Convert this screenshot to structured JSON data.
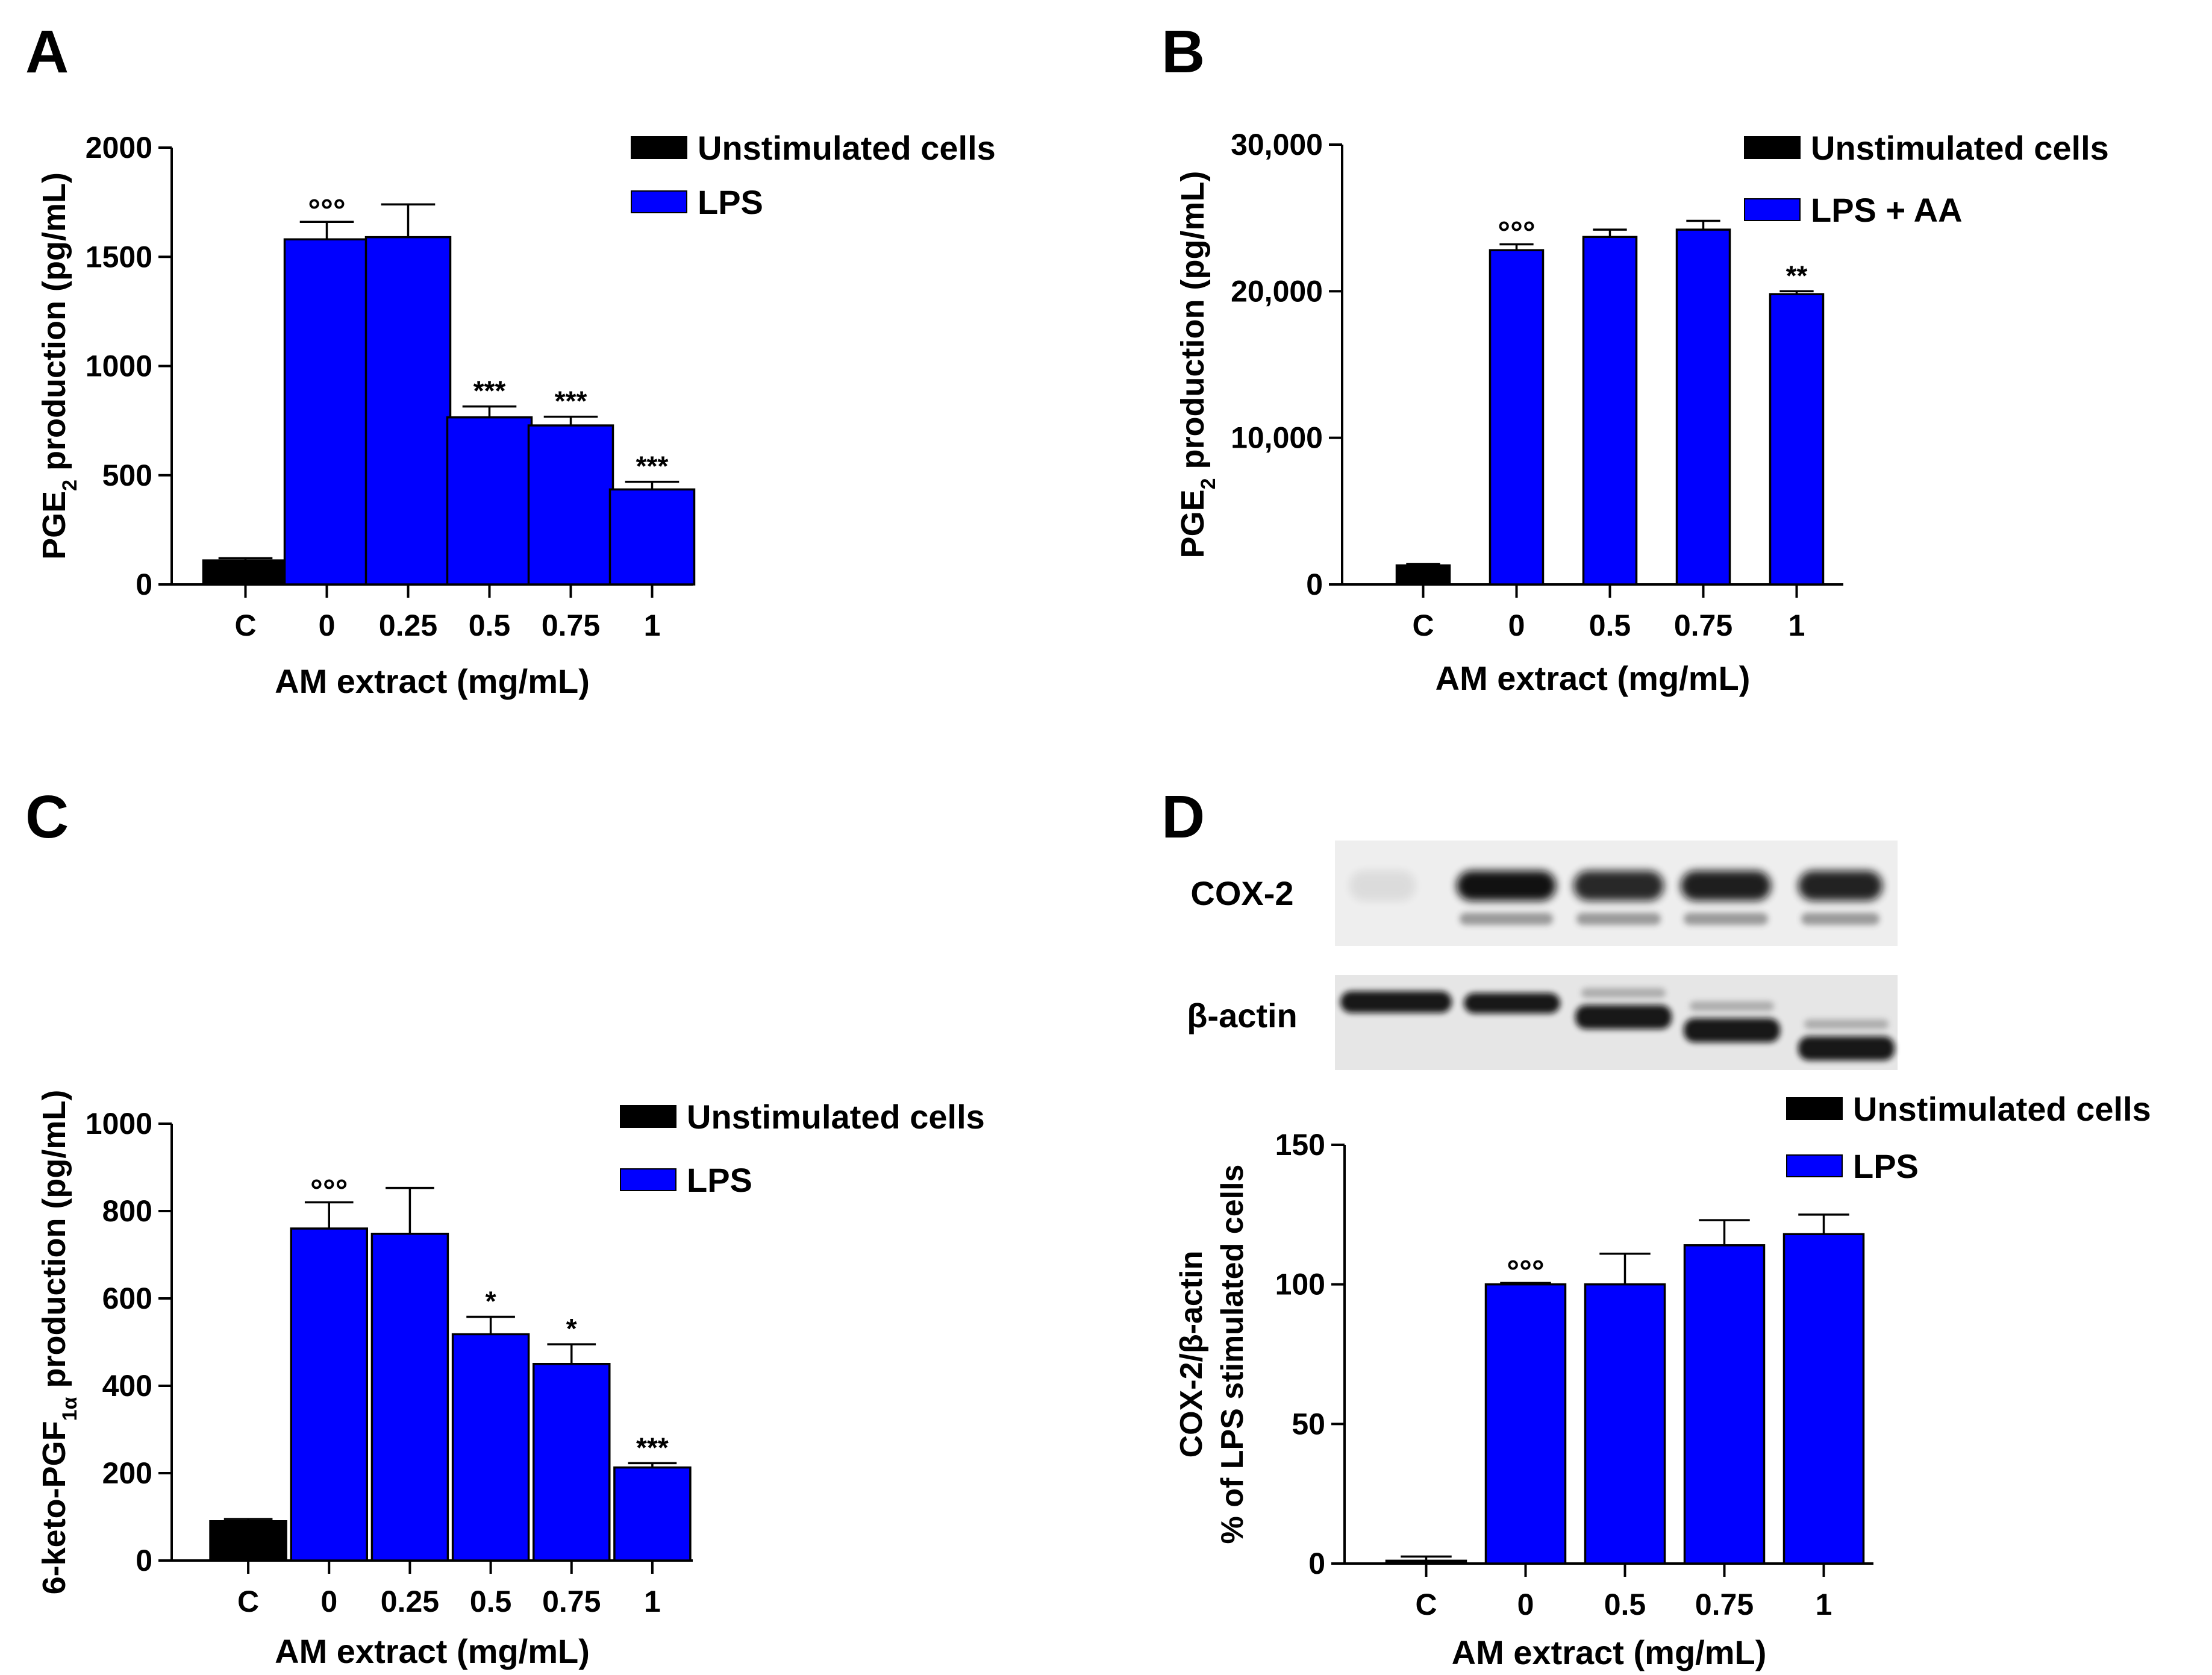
{
  "colors": {
    "unstimulated": "#000000",
    "lps": "#0000ff",
    "axis": "#000000",
    "sig": "#000000"
  },
  "chart_data": [
    {
      "type": "bar",
      "panel_label": "A",
      "ylabel": "PGE2 production (pg/mL)",
      "ylabel_parts": {
        "pre": "PGE",
        "sub": "2",
        "post": " production (pg/mL)"
      },
      "xlabel": "AM extract (mg/mL)",
      "categories": [
        "C",
        "0",
        "0.25",
        "0.5",
        "0.75",
        "1"
      ],
      "values": [
        110,
        1580,
        1590,
        765,
        728,
        435
      ],
      "errors": [
        10,
        80,
        150,
        50,
        40,
        35
      ],
      "series_index": [
        0,
        1,
        1,
        1,
        1,
        1
      ],
      "significance": [
        "",
        "°°°",
        "",
        "***",
        "***",
        "***"
      ],
      "ylim": [
        0,
        2000
      ],
      "yticks": [
        0,
        500,
        1000,
        1500,
        2000
      ],
      "yticklabels": [
        "0",
        "500",
        "1000",
        "1500",
        "2000"
      ],
      "legend": [
        "Unstimulated cells",
        "LPS"
      ]
    },
    {
      "type": "bar",
      "panel_label": "B",
      "ylabel": "PGE2 production (pg/mL)",
      "ylabel_parts": {
        "pre": "PGE",
        "sub": "2",
        "post": " production (pg/mL)"
      },
      "xlabel": "AM extract (mg/mL)",
      "categories": [
        "C",
        "0",
        "0.5",
        "0.75",
        "1"
      ],
      "values": [
        1300,
        22800,
        23700,
        24200,
        19800
      ],
      "errors": [
        100,
        400,
        500,
        600,
        200
      ],
      "series_index": [
        0,
        1,
        1,
        1,
        1
      ],
      "significance": [
        "",
        "°°°",
        "",
        "",
        "**"
      ],
      "ylim": [
        0,
        30000
      ],
      "yticks": [
        0,
        10000,
        20000,
        30000
      ],
      "yticklabels": [
        "0",
        "10,000",
        "20,000",
        "30,000"
      ],
      "legend": [
        "Unstimulated cells",
        "LPS + AA"
      ]
    },
    {
      "type": "bar",
      "panel_label": "C",
      "ylabel": "6-keto-PGF1α production (pg/mL)",
      "ylabel_parts": {
        "pre": "6-keto-PGF",
        "sub": "1α",
        "post": " production (pg/mL)"
      },
      "xlabel": "AM extract (mg/mL)",
      "categories": [
        "C",
        "0",
        "0.25",
        "0.5",
        "0.75",
        "1"
      ],
      "values": [
        90,
        760,
        748,
        518,
        450,
        213
      ],
      "errors": [
        5,
        60,
        105,
        40,
        45,
        10
      ],
      "series_index": [
        0,
        1,
        1,
        1,
        1,
        1
      ],
      "significance": [
        "",
        "°°°",
        "",
        "*",
        "*",
        "***"
      ],
      "ylim": [
        0,
        1000
      ],
      "yticks": [
        0,
        200,
        400,
        600,
        800,
        1000
      ],
      "yticklabels": [
        "0",
        "200",
        "400",
        "600",
        "800",
        "1000"
      ],
      "legend": [
        "Unstimulated cells",
        "LPS"
      ]
    },
    {
      "type": "bar",
      "panel_label": "D",
      "ylabel": "COX-2/β-actin % of LPS stimulated cells",
      "ylabel_lines": [
        "COX-2/β-actin",
        "% of LPS stimulated cells"
      ],
      "xlabel": "AM extract (mg/mL)",
      "categories": [
        "C",
        "0",
        "0.5",
        "0.75",
        "1"
      ],
      "values": [
        1,
        100,
        100,
        114,
        118
      ],
      "errors": [
        1.5,
        0.5,
        11,
        9,
        7
      ],
      "series_index": [
        0,
        1,
        1,
        1,
        1
      ],
      "significance": [
        "",
        "°°°",
        "",
        "",
        ""
      ],
      "ylim": [
        0,
        150
      ],
      "yticks": [
        0,
        50,
        100,
        150
      ],
      "yticklabels": [
        "0",
        "50",
        "100",
        "150"
      ],
      "legend": [
        "Unstimulated cells",
        "LPS"
      ],
      "blot_labels": [
        "COX-2",
        "β-actin"
      ]
    }
  ]
}
